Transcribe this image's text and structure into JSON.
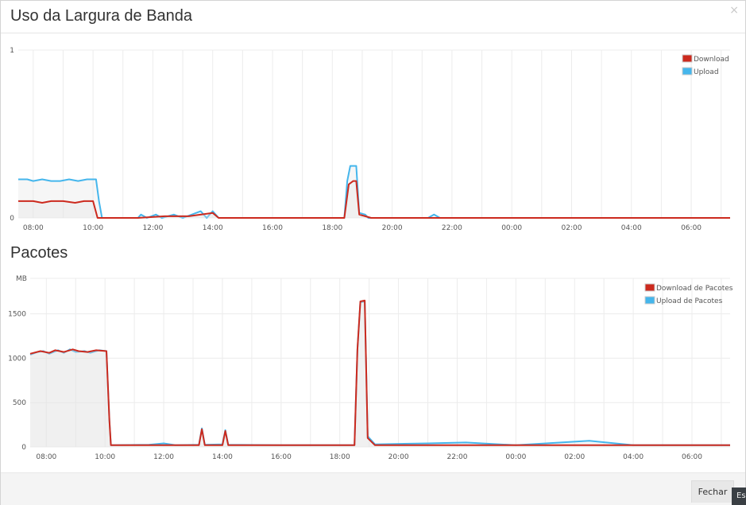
{
  "modal": {
    "title": "Uso da Largura de Banda",
    "close_label": "×",
    "fechar_label": "Fechar",
    "corner_label": "Es"
  },
  "packets_section": {
    "title": "Pacotes"
  },
  "chart_data": [
    {
      "type": "area",
      "ylim": [
        0,
        1
      ],
      "y_ticks": [
        "0",
        "1"
      ],
      "x_ticks": [
        "08:00",
        "10:00",
        "12:00",
        "14:00",
        "16:00",
        "18:00",
        "20:00",
        "22:00",
        "00:00",
        "02:00",
        "04:00",
        "06:00"
      ],
      "x_range_hours": [
        7.5,
        31.3
      ],
      "colors": {
        "download": "#cc2a1e",
        "upload": "#45b6ec"
      },
      "series": [
        {
          "name": "Download",
          "color": "#cc2a1e",
          "values": [
            [
              7.5,
              0.1
            ],
            [
              8,
              0.1
            ],
            [
              8.3,
              0.09
            ],
            [
              8.6,
              0.1
            ],
            [
              9,
              0.1
            ],
            [
              9.4,
              0.09
            ],
            [
              9.7,
              0.1
            ],
            [
              10,
              0.1
            ],
            [
              10.15,
              0.0
            ],
            [
              11.5,
              0.0
            ],
            [
              12.4,
              0.01
            ],
            [
              13.2,
              0.01
            ],
            [
              14,
              0.03
            ],
            [
              14.2,
              0.0
            ],
            [
              18.4,
              0.0
            ],
            [
              18.55,
              0.2
            ],
            [
              18.7,
              0.22
            ],
            [
              18.8,
              0.22
            ],
            [
              18.9,
              0.02
            ],
            [
              19.1,
              0.01
            ],
            [
              19.3,
              0.0
            ],
            [
              31.3,
              0.0
            ]
          ]
        },
        {
          "name": "Upload",
          "color": "#45b6ec",
          "values": [
            [
              7.5,
              0.23
            ],
            [
              7.8,
              0.23
            ],
            [
              8,
              0.22
            ],
            [
              8.3,
              0.23
            ],
            [
              8.6,
              0.22
            ],
            [
              8.9,
              0.22
            ],
            [
              9.2,
              0.23
            ],
            [
              9.5,
              0.22
            ],
            [
              9.8,
              0.23
            ],
            [
              10.1,
              0.23
            ],
            [
              10.2,
              0.1
            ],
            [
              10.3,
              0.0
            ],
            [
              11.5,
              0.0
            ],
            [
              11.6,
              0.02
            ],
            [
              11.8,
              0.0
            ],
            [
              12.1,
              0.02
            ],
            [
              12.3,
              0.0
            ],
            [
              12.7,
              0.02
            ],
            [
              13,
              0.0
            ],
            [
              13.6,
              0.04
            ],
            [
              13.8,
              0.0
            ],
            [
              14,
              0.04
            ],
            [
              14.2,
              0.0
            ],
            [
              18.4,
              0.0
            ],
            [
              18.5,
              0.22
            ],
            [
              18.6,
              0.31
            ],
            [
              18.8,
              0.31
            ],
            [
              18.9,
              0.03
            ],
            [
              19.1,
              0.02
            ],
            [
              19.2,
              0.0
            ],
            [
              21.2,
              0.0
            ],
            [
              21.4,
              0.02
            ],
            [
              21.6,
              0.0
            ],
            [
              31.3,
              0.0
            ]
          ]
        }
      ]
    },
    {
      "type": "area",
      "ylabel": "MB",
      "ylim": [
        0,
        1900
      ],
      "y_ticks": [
        "0",
        "500",
        "1000",
        "1500"
      ],
      "x_ticks": [
        "08:00",
        "10:00",
        "12:00",
        "14:00",
        "16:00",
        "18:00",
        "20:00",
        "22:00",
        "00:00",
        "02:00",
        "04:00",
        "06:00"
      ],
      "x_range_hours": [
        7.45,
        31.3
      ],
      "colors": {
        "download": "#cc2a1e",
        "upload": "#45b6ec"
      },
      "series": [
        {
          "name": "Download de Pacotes",
          "color": "#cc2a1e",
          "values": [
            [
              7.45,
              1050
            ],
            [
              7.8,
              1080
            ],
            [
              8.1,
              1060
            ],
            [
              8.3,
              1090
            ],
            [
              8.6,
              1070
            ],
            [
              8.9,
              1100
            ],
            [
              9.1,
              1080
            ],
            [
              9.4,
              1070
            ],
            [
              9.7,
              1090
            ],
            [
              10.05,
              1080
            ],
            [
              10.15,
              300
            ],
            [
              10.2,
              20
            ],
            [
              13.2,
              20
            ],
            [
              13.3,
              200
            ],
            [
              13.4,
              20
            ],
            [
              14,
              20
            ],
            [
              14.1,
              180
            ],
            [
              14.2,
              20
            ],
            [
              18.5,
              20
            ],
            [
              18.6,
              1100
            ],
            [
              18.7,
              1640
            ],
            [
              18.85,
              1650
            ],
            [
              18.95,
              100
            ],
            [
              19.2,
              20
            ],
            [
              31.3,
              20
            ]
          ]
        },
        {
          "name": "Upload de Pacotes",
          "color": "#45b6ec",
          "values": [
            [
              7.45,
              1040
            ],
            [
              7.7,
              1070
            ],
            [
              7.9,
              1080
            ],
            [
              8.1,
              1050
            ],
            [
              8.4,
              1090
            ],
            [
              8.6,
              1060
            ],
            [
              8.8,
              1100
            ],
            [
              9.0,
              1070
            ],
            [
              9.3,
              1080
            ],
            [
              9.5,
              1060
            ],
            [
              9.8,
              1090
            ],
            [
              10.05,
              1080
            ],
            [
              10.15,
              300
            ],
            [
              10.2,
              20
            ],
            [
              11.5,
              25
            ],
            [
              12,
              40
            ],
            [
              12.4,
              20
            ],
            [
              13.2,
              25
            ],
            [
              13.3,
              210
            ],
            [
              13.4,
              25
            ],
            [
              14,
              30
            ],
            [
              14.1,
              190
            ],
            [
              14.2,
              25
            ],
            [
              16,
              20
            ],
            [
              18.5,
              20
            ],
            [
              18.6,
              1100
            ],
            [
              18.7,
              1630
            ],
            [
              18.85,
              1640
            ],
            [
              18.95,
              120
            ],
            [
              19.2,
              30
            ],
            [
              21,
              40
            ],
            [
              22.3,
              50
            ],
            [
              24,
              20
            ],
            [
              26.5,
              70
            ],
            [
              28,
              20
            ],
            [
              31.3,
              20
            ]
          ]
        }
      ]
    }
  ]
}
